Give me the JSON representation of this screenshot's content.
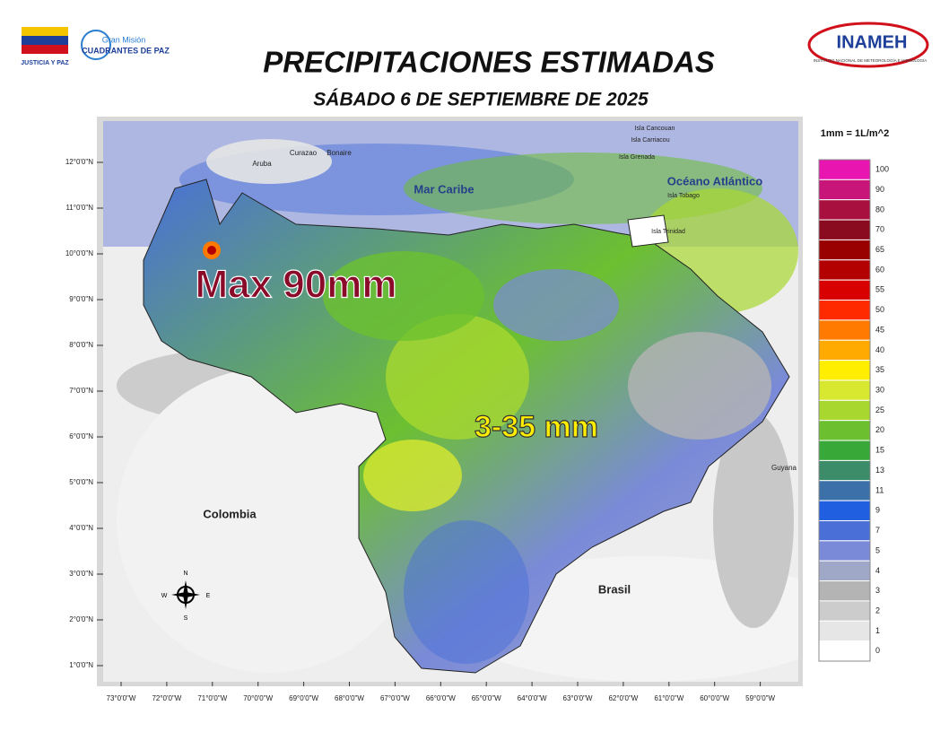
{
  "header": {
    "logo_left_caption": "JUSTICIA Y PAZ",
    "logo_mid_top": "Gran Misión",
    "logo_mid_bottom": "CUADRANTES DE PAZ",
    "logo_right": "INAMEH",
    "logo_right_caption": "INSTITUTO NACIONAL DE METEOROLOGÍA E HIDROLOGÍA",
    "title": "PRECIPITACIONES ESTIMADAS",
    "subtitle": "SÁBADO 6 DE SEPTIEMBRE DE 2025"
  },
  "map": {
    "latitude_labels": [
      "12°0'0\"N",
      "11°0'0\"N",
      "10°0'0\"N",
      "9°0'0\"N",
      "8°0'0\"N",
      "7°0'0\"N",
      "6°0'0\"N",
      "5°0'0\"N",
      "4°0'0\"N",
      "3°0'0\"N",
      "2°0'0\"N",
      "1°0'0\"N"
    ],
    "longitude_labels": [
      "73°0'0\"W",
      "72°0'0\"W",
      "71°0'0\"W",
      "70°0'0\"W",
      "69°0'0\"W",
      "68°0'0\"W",
      "67°0'0\"W",
      "66°0'0\"W",
      "65°0'0\"W",
      "64°0'0\"W",
      "63°0'0\"W",
      "62°0'0\"W",
      "61°0'0\"W",
      "60°0'0\"W",
      "59°0'0\"W"
    ],
    "places": [
      "Aruba",
      "Curazao",
      "Bonaire",
      "Mar Caribe",
      "Océano Atlántico",
      "Isla Cancouan",
      "Isla Carriacou",
      "Isla Grenada",
      "Isla Tobago",
      "Isla Trinidad",
      "Colombia",
      "Brasil",
      "Guyana"
    ],
    "annotations": [
      "Max 90mm",
      "3-35 mm"
    ],
    "compass": [
      "N",
      "E",
      "S",
      "W"
    ]
  },
  "legend": {
    "unit": "1mm = 1L/m^2",
    "levels": [
      {
        "value": 100,
        "color": "#e815b0"
      },
      {
        "value": 90,
        "color": "#c8157a"
      },
      {
        "value": 80,
        "color": "#a8103f"
      },
      {
        "value": 70,
        "color": "#8a0a1f"
      },
      {
        "value": 65,
        "color": "#990000"
      },
      {
        "value": 60,
        "color": "#b30000"
      },
      {
        "value": 55,
        "color": "#d90000"
      },
      {
        "value": 50,
        "color": "#ff2a00"
      },
      {
        "value": 45,
        "color": "#ff7a00"
      },
      {
        "value": 40,
        "color": "#ffaa00"
      },
      {
        "value": 35,
        "color": "#ffee00"
      },
      {
        "value": 30,
        "color": "#d8e830"
      },
      {
        "value": 25,
        "color": "#a8d830"
      },
      {
        "value": 20,
        "color": "#6cc030"
      },
      {
        "value": 15,
        "color": "#38a838"
      },
      {
        "value": 13,
        "color": "#3c8c6a"
      },
      {
        "value": 11,
        "color": "#3c70a8"
      },
      {
        "value": 9,
        "color": "#2060e0"
      },
      {
        "value": 7,
        "color": "#4a70d8"
      },
      {
        "value": 5,
        "color": "#7a8ad8"
      },
      {
        "value": 4,
        "color": "#a0a8c8"
      },
      {
        "value": 3,
        "color": "#b4b4b4"
      },
      {
        "value": 2,
        "color": "#cccccc"
      },
      {
        "value": 1,
        "color": "#e6e6e6"
      },
      {
        "value": 0,
        "color": "#ffffff"
      }
    ]
  }
}
